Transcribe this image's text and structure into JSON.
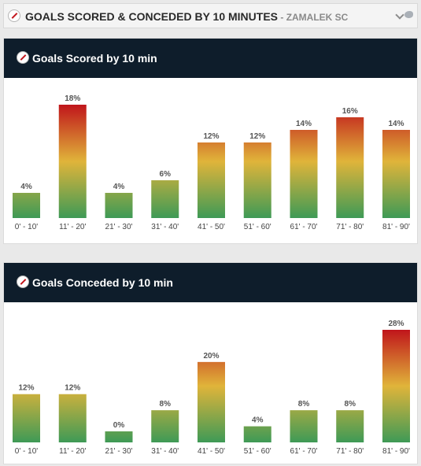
{
  "header": {
    "title": "GOALS SCORED & CONCEDED BY 10 MINUTES",
    "separator": " - ",
    "team": "ZAMALEK SC"
  },
  "icons": [
    "club-crest-icon",
    "chevron-down-icon",
    "twitter-icon"
  ],
  "colors": {
    "header_bg": "#0e1d2b",
    "bar_top": "#c0151b",
    "bar_mid": "#e0b43a",
    "bar_bottom": "#3e9a56"
  },
  "chart_data": [
    {
      "type": "bar",
      "title": "Goals Scored by 10 min",
      "categories": [
        "0' - 10'",
        "11' - 20'",
        "21' - 30'",
        "31' - 40'",
        "41' - 50'",
        "51' - 60'",
        "61' - 70'",
        "71' - 80'",
        "81' - 90'"
      ],
      "values": [
        4,
        18,
        4,
        6,
        12,
        12,
        14,
        16,
        14
      ],
      "value_labels": [
        "4%",
        "18%",
        "4%",
        "6%",
        "12%",
        "12%",
        "14%",
        "16%",
        "14%"
      ],
      "ylim": [
        0,
        18
      ]
    },
    {
      "type": "bar",
      "title": "Goals Conceded by 10 min",
      "categories": [
        "0' - 10'",
        "11' - 20'",
        "21' - 30'",
        "31' - 40'",
        "41' - 50'",
        "51' - 60'",
        "61' - 70'",
        "71' - 80'",
        "81' - 90'"
      ],
      "values": [
        12,
        12,
        0,
        8,
        20,
        4,
        8,
        8,
        28
      ],
      "value_labels": [
        "12%",
        "12%",
        "0%",
        "8%",
        "20%",
        "4%",
        "8%",
        "8%",
        "28%"
      ],
      "ylim": [
        0,
        28
      ]
    }
  ]
}
